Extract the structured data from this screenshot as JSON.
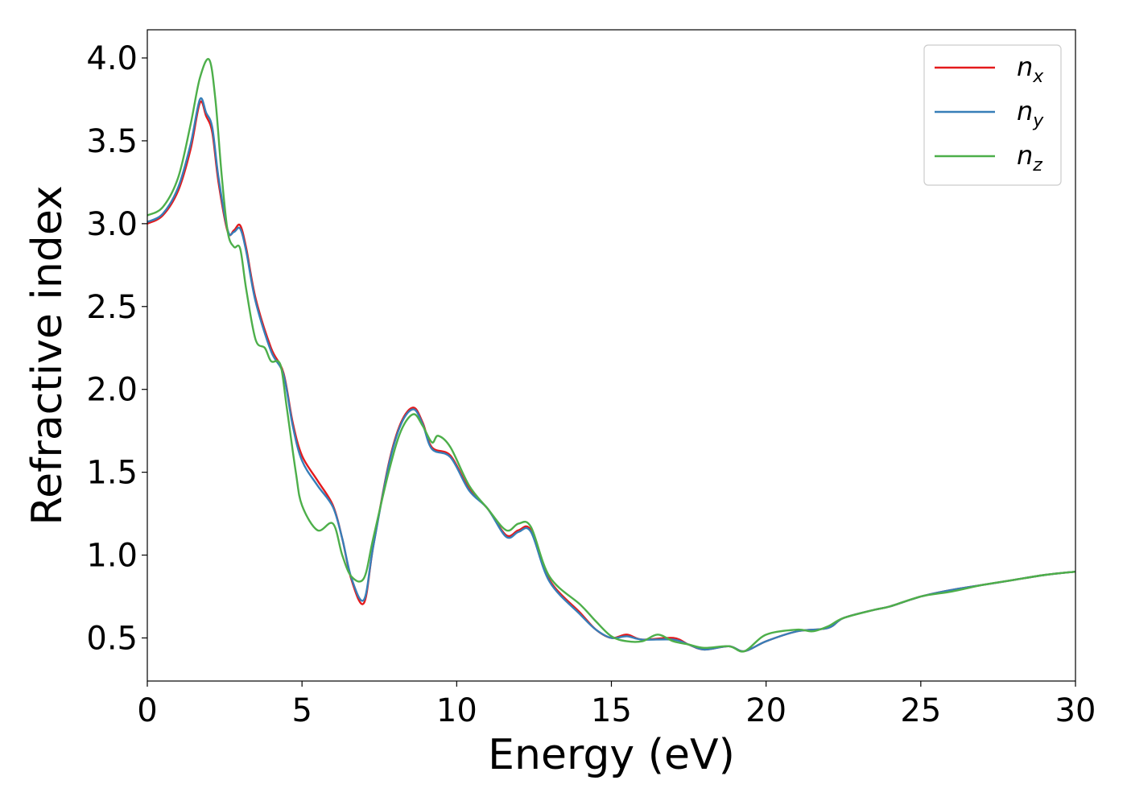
{
  "chart_data": {
    "type": "line",
    "xlabel": "Energy (eV)",
    "ylabel": "Refractive index",
    "xlim": [
      0,
      30
    ],
    "ylim": [
      0.24,
      4.17
    ],
    "xticks": [
      0,
      5,
      10,
      15,
      20,
      25,
      30
    ],
    "xtick_labels": [
      "0",
      "5",
      "10",
      "15",
      "20",
      "25",
      "30"
    ],
    "yticks": [
      0.5,
      1.0,
      1.5,
      2.0,
      2.5,
      3.0,
      3.5,
      4.0
    ],
    "ytick_labels": [
      "0.5",
      "1.0",
      "1.5",
      "2.0",
      "2.5",
      "3.0",
      "3.5",
      "4.0"
    ],
    "grid": false,
    "legend_position": "top-right",
    "series": [
      {
        "name": "n_x",
        "label_base": "n",
        "label_sub": "x",
        "color": "#e41a1c",
        "points": [
          [
            0,
            3.0
          ],
          [
            0.5,
            3.05
          ],
          [
            1.0,
            3.2
          ],
          [
            1.4,
            3.45
          ],
          [
            1.7,
            3.73
          ],
          [
            1.9,
            3.65
          ],
          [
            2.1,
            3.55
          ],
          [
            2.3,
            3.25
          ],
          [
            2.6,
            2.95
          ],
          [
            2.8,
            2.96
          ],
          [
            3.0,
            2.99
          ],
          [
            3.2,
            2.85
          ],
          [
            3.5,
            2.55
          ],
          [
            4.0,
            2.25
          ],
          [
            4.4,
            2.1
          ],
          [
            4.7,
            1.8
          ],
          [
            5.0,
            1.6
          ],
          [
            5.5,
            1.45
          ],
          [
            6.0,
            1.3
          ],
          [
            6.3,
            1.1
          ],
          [
            6.6,
            0.85
          ],
          [
            7.0,
            0.71
          ],
          [
            7.3,
            1.05
          ],
          [
            7.8,
            1.55
          ],
          [
            8.2,
            1.8
          ],
          [
            8.6,
            1.89
          ],
          [
            8.9,
            1.8
          ],
          [
            9.2,
            1.65
          ],
          [
            9.8,
            1.6
          ],
          [
            10.4,
            1.4
          ],
          [
            11.0,
            1.28
          ],
          [
            11.6,
            1.12
          ],
          [
            12.0,
            1.15
          ],
          [
            12.4,
            1.15
          ],
          [
            13.0,
            0.85
          ],
          [
            14.0,
            0.65
          ],
          [
            14.5,
            0.55
          ],
          [
            15.0,
            0.5
          ],
          [
            15.5,
            0.52
          ],
          [
            16.0,
            0.49
          ],
          [
            17.0,
            0.5
          ],
          [
            17.5,
            0.46
          ],
          [
            18.0,
            0.43
          ],
          [
            18.8,
            0.45
          ],
          [
            19.3,
            0.42
          ],
          [
            20.0,
            0.48
          ],
          [
            21.0,
            0.54
          ],
          [
            22.0,
            0.56
          ],
          [
            22.5,
            0.62
          ],
          [
            23.5,
            0.67
          ],
          [
            24.0,
            0.69
          ],
          [
            25.0,
            0.75
          ],
          [
            26.0,
            0.79
          ],
          [
            27.0,
            0.82
          ],
          [
            28.0,
            0.85
          ],
          [
            29.0,
            0.88
          ],
          [
            30.0,
            0.9
          ]
        ]
      },
      {
        "name": "n_y",
        "label_base": "n",
        "label_sub": "y",
        "color": "#377eb8",
        "points": [
          [
            0,
            3.01
          ],
          [
            0.5,
            3.06
          ],
          [
            1.0,
            3.22
          ],
          [
            1.4,
            3.48
          ],
          [
            1.7,
            3.75
          ],
          [
            1.9,
            3.67
          ],
          [
            2.1,
            3.58
          ],
          [
            2.3,
            3.28
          ],
          [
            2.6,
            2.96
          ],
          [
            2.8,
            2.95
          ],
          [
            3.0,
            2.97
          ],
          [
            3.2,
            2.83
          ],
          [
            3.5,
            2.53
          ],
          [
            4.0,
            2.23
          ],
          [
            4.4,
            2.09
          ],
          [
            4.7,
            1.78
          ],
          [
            5.0,
            1.57
          ],
          [
            5.5,
            1.42
          ],
          [
            6.0,
            1.29
          ],
          [
            6.3,
            1.1
          ],
          [
            6.6,
            0.86
          ],
          [
            7.0,
            0.73
          ],
          [
            7.3,
            1.05
          ],
          [
            7.8,
            1.54
          ],
          [
            8.2,
            1.79
          ],
          [
            8.6,
            1.88
          ],
          [
            8.9,
            1.79
          ],
          [
            9.2,
            1.64
          ],
          [
            9.8,
            1.59
          ],
          [
            10.4,
            1.39
          ],
          [
            11.0,
            1.28
          ],
          [
            11.6,
            1.11
          ],
          [
            12.0,
            1.14
          ],
          [
            12.4,
            1.14
          ],
          [
            13.0,
            0.84
          ],
          [
            14.0,
            0.64
          ],
          [
            14.5,
            0.55
          ],
          [
            15.0,
            0.5
          ],
          [
            15.5,
            0.51
          ],
          [
            16.0,
            0.49
          ],
          [
            17.0,
            0.49
          ],
          [
            17.5,
            0.46
          ],
          [
            18.0,
            0.43
          ],
          [
            18.8,
            0.45
          ],
          [
            19.3,
            0.42
          ],
          [
            20.0,
            0.48
          ],
          [
            21.0,
            0.54
          ],
          [
            22.0,
            0.56
          ],
          [
            22.5,
            0.62
          ],
          [
            23.5,
            0.67
          ],
          [
            24.0,
            0.69
          ],
          [
            25.0,
            0.75
          ],
          [
            26.0,
            0.79
          ],
          [
            27.0,
            0.82
          ],
          [
            28.0,
            0.85
          ],
          [
            29.0,
            0.88
          ],
          [
            30.0,
            0.9
          ]
        ]
      },
      {
        "name": "n_z",
        "label_base": "n",
        "label_sub": "z",
        "color": "#4daf4a",
        "points": [
          [
            0,
            3.05
          ],
          [
            0.5,
            3.1
          ],
          [
            1.0,
            3.28
          ],
          [
            1.4,
            3.6
          ],
          [
            1.7,
            3.88
          ],
          [
            2.0,
            3.99
          ],
          [
            2.2,
            3.75
          ],
          [
            2.4,
            3.3
          ],
          [
            2.6,
            2.95
          ],
          [
            2.8,
            2.86
          ],
          [
            3.0,
            2.85
          ],
          [
            3.2,
            2.6
          ],
          [
            3.5,
            2.3
          ],
          [
            3.8,
            2.25
          ],
          [
            4.0,
            2.17
          ],
          [
            4.3,
            2.15
          ],
          [
            4.5,
            1.9
          ],
          [
            4.8,
            1.5
          ],
          [
            5.0,
            1.3
          ],
          [
            5.5,
            1.15
          ],
          [
            6.0,
            1.19
          ],
          [
            6.3,
            1.0
          ],
          [
            6.6,
            0.87
          ],
          [
            7.0,
            0.86
          ],
          [
            7.3,
            1.1
          ],
          [
            7.8,
            1.5
          ],
          [
            8.2,
            1.75
          ],
          [
            8.6,
            1.85
          ],
          [
            8.9,
            1.78
          ],
          [
            9.2,
            1.68
          ],
          [
            9.4,
            1.72
          ],
          [
            9.8,
            1.65
          ],
          [
            10.4,
            1.42
          ],
          [
            11.0,
            1.28
          ],
          [
            11.6,
            1.15
          ],
          [
            12.0,
            1.19
          ],
          [
            12.4,
            1.17
          ],
          [
            13.0,
            0.87
          ],
          [
            14.0,
            0.7
          ],
          [
            14.5,
            0.6
          ],
          [
            15.0,
            0.51
          ],
          [
            15.5,
            0.48
          ],
          [
            16.0,
            0.48
          ],
          [
            16.5,
            0.52
          ],
          [
            17.0,
            0.48
          ],
          [
            17.5,
            0.46
          ],
          [
            18.0,
            0.44
          ],
          [
            18.8,
            0.45
          ],
          [
            19.3,
            0.42
          ],
          [
            20.0,
            0.52
          ],
          [
            21.0,
            0.55
          ],
          [
            21.5,
            0.54
          ],
          [
            22.0,
            0.57
          ],
          [
            22.5,
            0.62
          ],
          [
            23.5,
            0.67
          ],
          [
            24.0,
            0.69
          ],
          [
            25.0,
            0.75
          ],
          [
            26.0,
            0.78
          ],
          [
            27.0,
            0.82
          ],
          [
            28.0,
            0.85
          ],
          [
            29.0,
            0.88
          ],
          [
            30.0,
            0.9
          ]
        ]
      }
    ]
  }
}
